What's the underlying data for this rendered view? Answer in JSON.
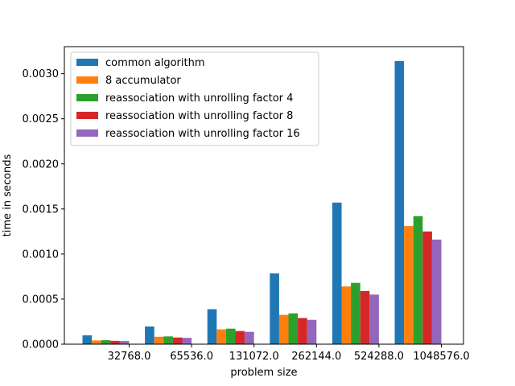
{
  "chart_data": {
    "type": "bar",
    "title": "",
    "xlabel": "problem size",
    "ylabel": "time in seconds",
    "categories": [
      "32768.0",
      "65536.0",
      "131072.0",
      "262144.0",
      "524288.0",
      "1048576.0"
    ],
    "ylim": [
      0,
      0.0033
    ],
    "yticks": [
      "0.0000",
      "0.0005",
      "0.0010",
      "0.0015",
      "0.0020",
      "0.0025",
      "0.0030"
    ],
    "grid": false,
    "legend_position": "upper-left",
    "series": [
      {
        "name": "common algorithm",
        "color": "#1f77b4",
        "values": [
          9.8e-05,
          0.000196,
          0.000388,
          0.000785,
          0.00157,
          0.00314
        ]
      },
      {
        "name": "8 accumulator",
        "color": "#ff7f0e",
        "values": [
          4.1e-05,
          8.2e-05,
          0.000164,
          0.000325,
          0.00064,
          0.00131
        ]
      },
      {
        "name": "reassociation with unrolling factor 4",
        "color": "#2ca02c",
        "values": [
          4.4e-05,
          8.6e-05,
          0.000172,
          0.000342,
          0.00068,
          0.00142
        ]
      },
      {
        "name": "reassociation with unrolling factor 8",
        "color": "#d62728",
        "values": [
          3.7e-05,
          7.4e-05,
          0.000146,
          0.00029,
          0.00059,
          0.00125
        ]
      },
      {
        "name": "reassociation with unrolling factor 16",
        "color": "#9467bd",
        "values": [
          3.5e-05,
          7e-05,
          0.000137,
          0.00027,
          0.00055,
          0.00116
        ]
      }
    ]
  }
}
